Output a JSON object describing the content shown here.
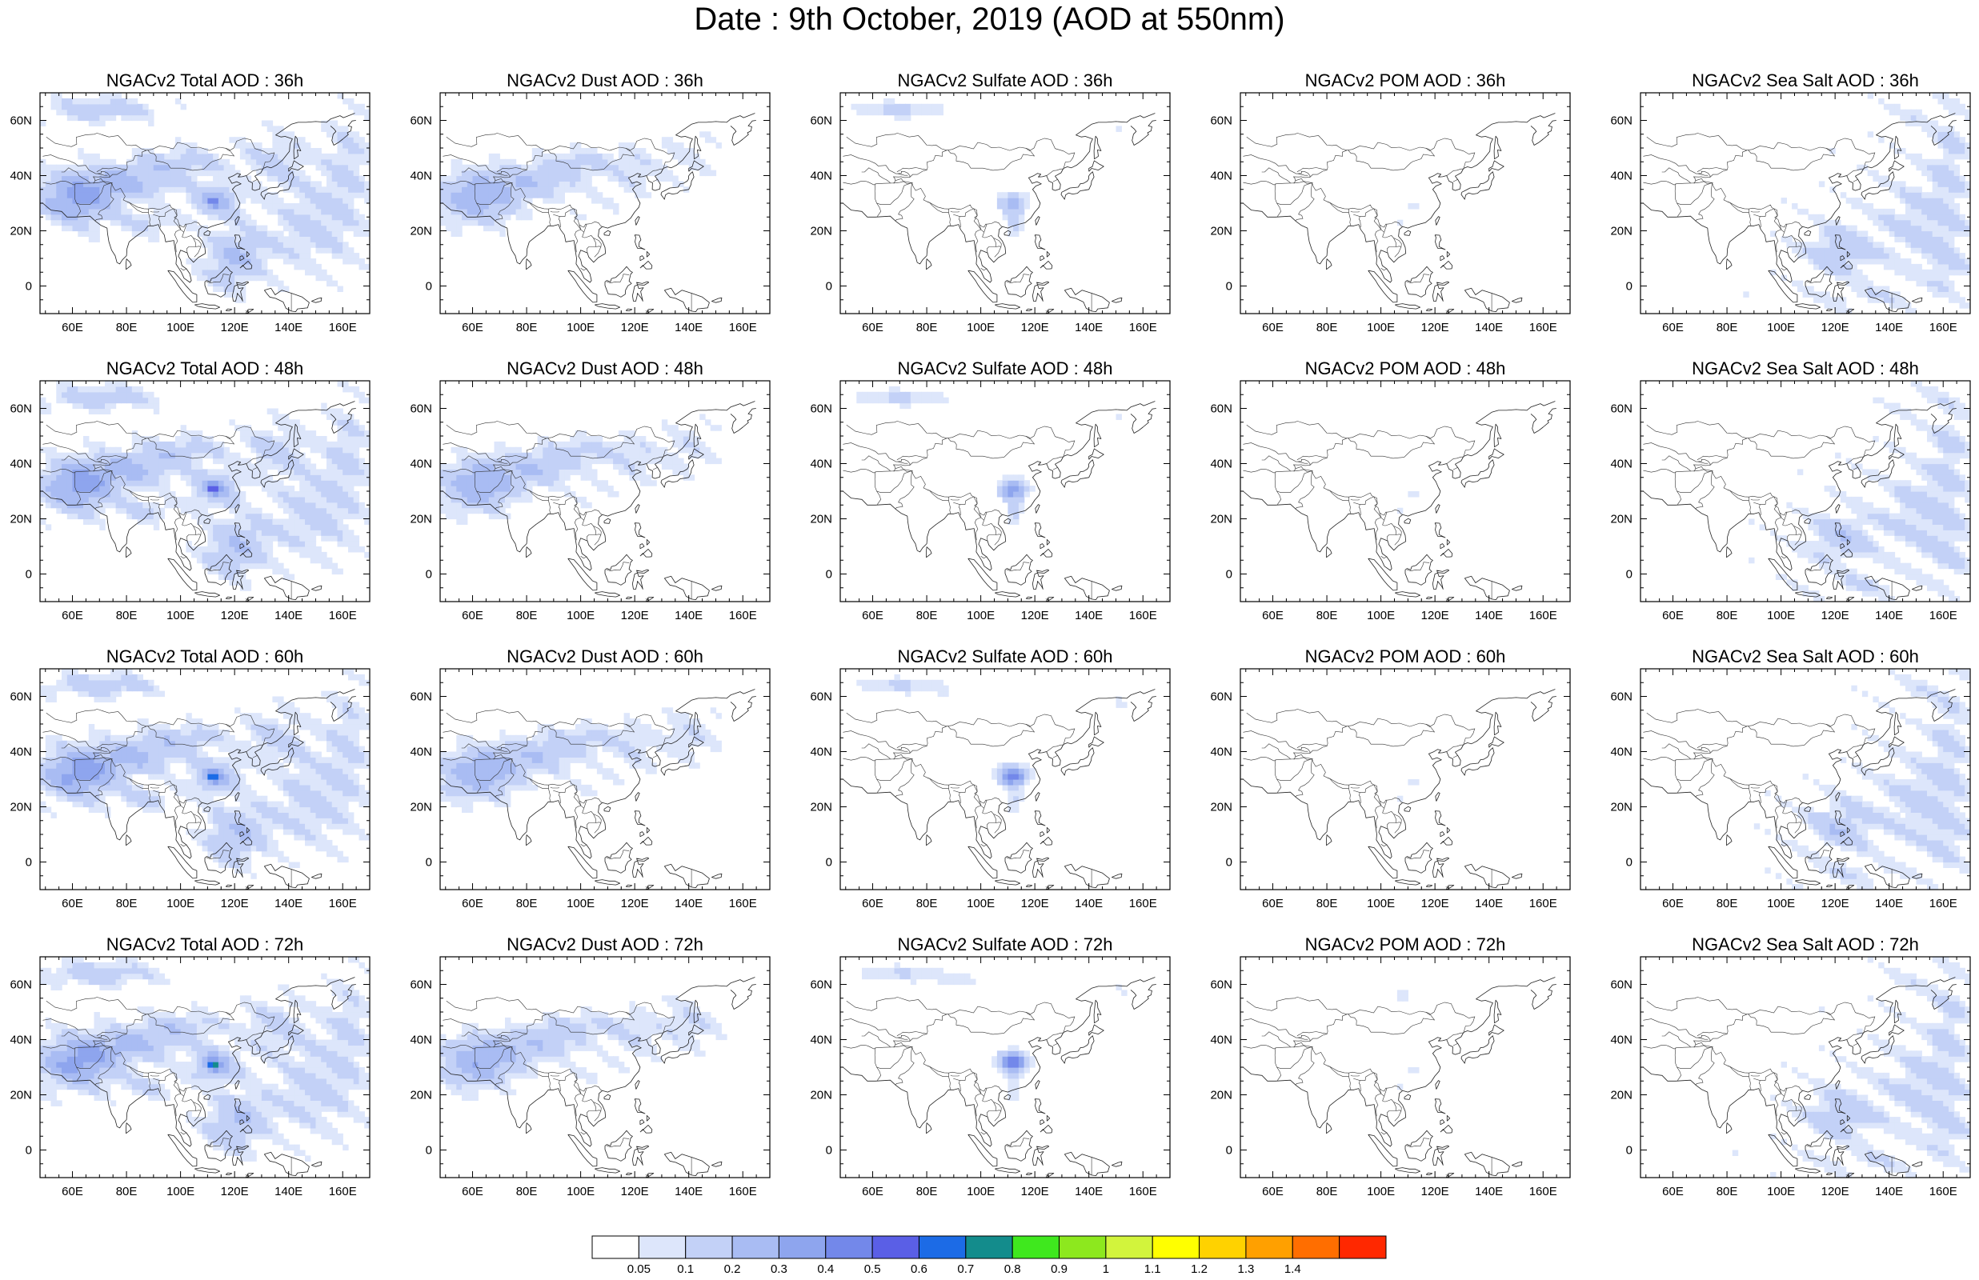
{
  "title": "Date : 9th October, 2019 (AOD at 550nm)",
  "map_extent": {
    "lon": [
      48,
      170
    ],
    "lat": [
      -10,
      70
    ]
  },
  "x_ticks": [
    {
      "value": 60,
      "label": "60E"
    },
    {
      "value": 80,
      "label": "80E"
    },
    {
      "value": 100,
      "label": "100E"
    },
    {
      "value": 120,
      "label": "120E"
    },
    {
      "value": 140,
      "label": "140E"
    },
    {
      "value": 160,
      "label": "160E"
    }
  ],
  "y_ticks": [
    {
      "value": 60,
      "label": "60N"
    },
    {
      "value": 40,
      "label": "40N"
    },
    {
      "value": 20,
      "label": "20N"
    },
    {
      "value": 0,
      "label": "0"
    }
  ],
  "panels": [
    {
      "title": "NGACv2 Total AOD : 36h",
      "species": "total",
      "hour": 36
    },
    {
      "title": "NGACv2 Dust AOD : 36h",
      "species": "dust",
      "hour": 36
    },
    {
      "title": "NGACv2 Sulfate AOD : 36h",
      "species": "sulfate",
      "hour": 36
    },
    {
      "title": "NGACv2 POM AOD : 36h",
      "species": "pom",
      "hour": 36
    },
    {
      "title": "NGACv2 Sea Salt AOD : 36h",
      "species": "seasalt",
      "hour": 36
    },
    {
      "title": "NGACv2 Total AOD : 48h",
      "species": "total",
      "hour": 48
    },
    {
      "title": "NGACv2 Dust AOD : 48h",
      "species": "dust",
      "hour": 48
    },
    {
      "title": "NGACv2 Sulfate AOD : 48h",
      "species": "sulfate",
      "hour": 48
    },
    {
      "title": "NGACv2 POM AOD : 48h",
      "species": "pom",
      "hour": 48
    },
    {
      "title": "NGACv2 Sea Salt AOD : 48h",
      "species": "seasalt",
      "hour": 48
    },
    {
      "title": "NGACv2 Total AOD : 60h",
      "species": "total",
      "hour": 60
    },
    {
      "title": "NGACv2 Dust AOD : 60h",
      "species": "dust",
      "hour": 60
    },
    {
      "title": "NGACv2 Sulfate AOD : 60h",
      "species": "sulfate",
      "hour": 60
    },
    {
      "title": "NGACv2 POM AOD : 60h",
      "species": "pom",
      "hour": 60
    },
    {
      "title": "NGACv2 Sea Salt AOD : 60h",
      "species": "seasalt",
      "hour": 60
    },
    {
      "title": "NGACv2 Total AOD : 72h",
      "species": "total",
      "hour": 72
    },
    {
      "title": "NGACv2 Dust AOD : 72h",
      "species": "dust",
      "hour": 72
    },
    {
      "title": "NGACv2 Sulfate AOD : 72h",
      "species": "sulfate",
      "hour": 72
    },
    {
      "title": "NGACv2 POM AOD : 72h",
      "species": "pom",
      "hour": 72
    },
    {
      "title": "NGACv2 Sea Salt  AOD : 72h",
      "species": "seasalt",
      "hour": 72
    }
  ],
  "colorbar": {
    "labels": [
      "0.05",
      "0.1",
      "0.2",
      "0.3",
      "0.4",
      "0.5",
      "0.6",
      "0.7",
      "0.8",
      "0.9",
      "1",
      "1.1",
      "1.2",
      "1.3",
      "1.4"
    ],
    "colors": [
      "#ffffff",
      "#dde6fb",
      "#c3d1f7",
      "#a9bcf3",
      "#8ea5ee",
      "#7388ea",
      "#5a5fe6",
      "#1c6be6",
      "#138c8c",
      "#3fe81e",
      "#8de81e",
      "#d2f43c",
      "#ffff00",
      "#ffd200",
      "#ffa000",
      "#ff6e00",
      "#ff2800"
    ]
  }
}
